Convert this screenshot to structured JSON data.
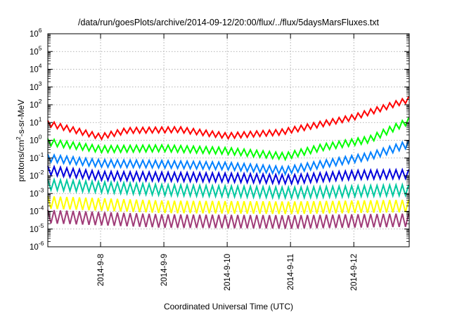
{
  "chart_data": {
    "type": "line",
    "title": "/data/run/goesPlots/archive/2014-09-12/20:00/flux/../flux/5daysMarsFluxes.txt",
    "xlabel": "Coordinated Universal Time (UTC)",
    "ylabel": "protons/cm2-s-sr-MeV",
    "ylabel_parts": {
      "pre": "protons/cm",
      "sup": "2",
      "post": "-s-sr-MeV"
    },
    "y_scale": "log",
    "ylim_exponents": [
      -6,
      6
    ],
    "y_tick_labels": [
      {
        "base": "10",
        "exp": "-6"
      },
      {
        "base": "10",
        "exp": "-5"
      },
      {
        "base": "10",
        "exp": "-4"
      },
      {
        "base": "10",
        "exp": "-3"
      },
      {
        "base": "10",
        "exp": "-2"
      },
      {
        "base": "10",
        "exp": "-1"
      },
      {
        "base": "10",
        "exp": "0"
      },
      {
        "base": "10",
        "exp": "1"
      },
      {
        "base": "10",
        "exp": "2"
      },
      {
        "base": "10",
        "exp": "3"
      },
      {
        "base": "10",
        "exp": "4"
      },
      {
        "base": "10",
        "exp": "5"
      },
      {
        "base": "10",
        "exp": "6"
      }
    ],
    "xlim": [
      "2014-09-07 04:00",
      "2014-09-12 21:00"
    ],
    "x_ticks": [
      {
        "label": "2014-9-8",
        "date": "2014-09-08"
      },
      {
        "label": "2014-9-9",
        "date": "2014-09-09"
      },
      {
        "label": "2014-9-10",
        "date": "2014-09-10"
      },
      {
        "label": "2014-9-11",
        "date": "2014-09-11"
      },
      {
        "label": "2014-9-12",
        "date": "2014-09-12"
      }
    ],
    "grid": true,
    "legend": "none",
    "sawtooth_samples_per_day": 10,
    "series": [
      {
        "color": "#ff0000",
        "amplitude_decades": 0.32,
        "log10_levels": [
          {
            "date": "2014-09-07 04:00",
            "v": 0.95
          },
          {
            "date": "2014-09-08 00:00",
            "v": 0.2
          },
          {
            "date": "2014-09-08 10:00",
            "v": 0.55
          },
          {
            "date": "2014-09-09 06:00",
            "v": 0.6
          },
          {
            "date": "2014-09-10 00:00",
            "v": 0.25
          },
          {
            "date": "2014-09-10 20:00",
            "v": 0.45
          },
          {
            "date": "2014-09-11 08:00",
            "v": 0.8
          },
          {
            "date": "2014-09-12 00:00",
            "v": 1.3
          },
          {
            "date": "2014-09-12 21:00",
            "v": 2.3
          }
        ]
      },
      {
        "color": "#00ff00",
        "amplitude_decades": 0.38,
        "log10_levels": [
          {
            "date": "2014-09-07 04:00",
            "v": -0.1
          },
          {
            "date": "2014-09-08 00:00",
            "v": -0.5
          },
          {
            "date": "2014-09-09 00:00",
            "v": -0.45
          },
          {
            "date": "2014-09-10 00:00",
            "v": -0.6
          },
          {
            "date": "2014-09-10 22:00",
            "v": -0.9
          },
          {
            "date": "2014-09-11 12:00",
            "v": -0.4
          },
          {
            "date": "2014-09-12 06:00",
            "v": 0.05
          },
          {
            "date": "2014-09-12 21:00",
            "v": 1.1
          }
        ]
      },
      {
        "color": "#0080ff",
        "amplitude_decades": 0.42,
        "log10_levels": [
          {
            "date": "2014-09-07 04:00",
            "v": -1.0
          },
          {
            "date": "2014-09-08 00:00",
            "v": -1.3
          },
          {
            "date": "2014-09-09 00:00",
            "v": -1.35
          },
          {
            "date": "2014-09-10 00:00",
            "v": -1.45
          },
          {
            "date": "2014-09-10 22:00",
            "v": -1.7
          },
          {
            "date": "2014-09-11 12:00",
            "v": -1.35
          },
          {
            "date": "2014-09-12 06:00",
            "v": -0.9
          },
          {
            "date": "2014-09-12 21:00",
            "v": -0.2
          }
        ]
      },
      {
        "color": "#0000dd",
        "amplitude_decades": 0.5,
        "log10_levels": [
          {
            "date": "2014-09-07 04:00",
            "v": -1.7
          },
          {
            "date": "2014-09-08 00:00",
            "v": -2.0
          },
          {
            "date": "2014-09-10 00:00",
            "v": -2.1
          },
          {
            "date": "2014-09-11 00:00",
            "v": -2.2
          },
          {
            "date": "2014-09-12 00:00",
            "v": -1.95
          },
          {
            "date": "2014-09-12 21:00",
            "v": -1.9
          }
        ]
      },
      {
        "color": "#00c8a0",
        "amplitude_decades": 0.6,
        "log10_levels": [
          {
            "date": "2014-09-07 04:00",
            "v": -2.5
          },
          {
            "date": "2014-09-09 00:00",
            "v": -2.8
          },
          {
            "date": "2014-09-11 00:00",
            "v": -2.95
          },
          {
            "date": "2014-09-12 21:00",
            "v": -2.8
          }
        ]
      },
      {
        "color": "#ffff00",
        "amplitude_decades": 0.7,
        "log10_levels": [
          {
            "date": "2014-09-07 04:00",
            "v": -3.5
          },
          {
            "date": "2014-09-09 00:00",
            "v": -3.75
          },
          {
            "date": "2014-09-11 00:00",
            "v": -3.8
          },
          {
            "date": "2014-09-12 21:00",
            "v": -3.7
          }
        ]
      },
      {
        "color": "#a03c78",
        "amplitude_decades": 0.75,
        "log10_levels": [
          {
            "date": "2014-09-07 04:00",
            "v": -4.3
          },
          {
            "date": "2014-09-09 00:00",
            "v": -4.55
          },
          {
            "date": "2014-09-11 00:00",
            "v": -4.6
          },
          {
            "date": "2014-09-12 21:00",
            "v": -4.5
          }
        ]
      }
    ]
  }
}
